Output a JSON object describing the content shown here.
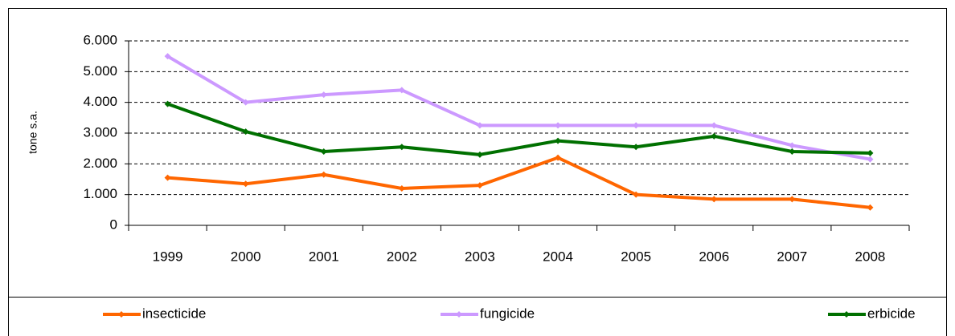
{
  "chart_data": {
    "type": "line",
    "y_label": "tone s.a.",
    "categories": [
      "1999",
      "2000",
      "2001",
      "2002",
      "2003",
      "2004",
      "2005",
      "2006",
      "2007",
      "2008"
    ],
    "series": [
      {
        "name": "insecticide",
        "color": "#ff6600",
        "values": [
          1550,
          1350,
          1650,
          1200,
          1300,
          2200,
          1000,
          850,
          850,
          580
        ]
      },
      {
        "name": "fungicide",
        "color": "#cc99ff",
        "values": [
          5500,
          4000,
          4250,
          4400,
          3250,
          3250,
          3250,
          3250,
          2600,
          2150
        ]
      },
      {
        "name": "erbicide",
        "color": "#007000",
        "values": [
          3950,
          3050,
          2400,
          2550,
          2300,
          2750,
          2550,
          2900,
          2400,
          2350
        ]
      }
    ],
    "ylim": [
      0,
      6000
    ],
    "yticks": [
      0,
      {
        "value": 1000,
        "label": "1.000"
      },
      {
        "value": 2000,
        "label": "2.000"
      },
      {
        "value": 3000,
        "label": "3.000"
      },
      {
        "value": 4000,
        "label": "4.000"
      },
      {
        "value": 5000,
        "label": "5.000"
      },
      {
        "value": 6000,
        "label": "6.000"
      }
    ],
    "grid": true,
    "legend": "bottom"
  }
}
